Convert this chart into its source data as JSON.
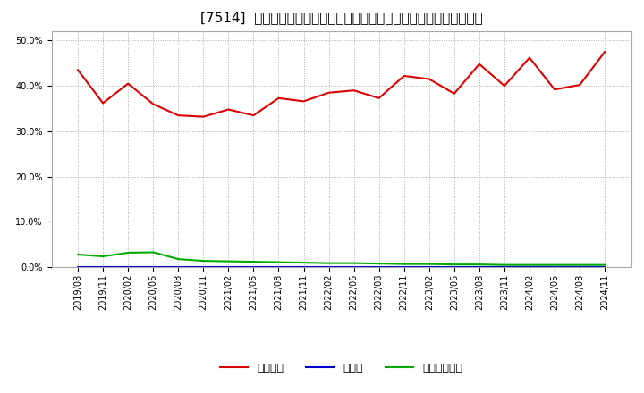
{
  "title": "[7514]  自己資本、のれん、繰延税金資産の総資産に対する比率の推移",
  "x_labels": [
    "2019/08",
    "2019/11",
    "2020/02",
    "2020/05",
    "2020/08",
    "2020/11",
    "2021/02",
    "2021/05",
    "2021/08",
    "2021/11",
    "2022/02",
    "2022/05",
    "2022/08",
    "2022/11",
    "2023/02",
    "2023/05",
    "2023/08",
    "2023/11",
    "2024/02",
    "2024/05",
    "2024/08",
    "2024/11"
  ],
  "jikoshihon": [
    0.435,
    0.362,
    0.405,
    0.36,
    0.335,
    0.332,
    0.348,
    0.335,
    0.373,
    0.366,
    0.385,
    0.39,
    0.373,
    0.422,
    0.415,
    0.383,
    0.448,
    0.4,
    0.462,
    0.392,
    0.402,
    0.475
  ],
  "noren": [
    0.0,
    0.0,
    0.0,
    0.0,
    0.0,
    0.0,
    0.0,
    0.0,
    0.0,
    0.0,
    0.0,
    0.0,
    0.0,
    0.0,
    0.0,
    0.0,
    0.0,
    0.0,
    0.0,
    0.0,
    0.0,
    0.0
  ],
  "kurinobe": [
    0.028,
    0.024,
    0.032,
    0.033,
    0.018,
    0.014,
    0.013,
    0.012,
    0.011,
    0.01,
    0.009,
    0.009,
    0.008,
    0.007,
    0.007,
    0.006,
    0.006,
    0.005,
    0.005,
    0.005,
    0.005,
    0.005
  ],
  "jikoshihon_color": "#dd0000",
  "noren_color": "#0000cc",
  "kurinobe_color": "#00aa00",
  "bg_color": "#ffffff",
  "plot_bg_color": "#ffffff",
  "grid_color": "#aaaaaa",
  "ylim": [
    0.0,
    0.52
  ],
  "yticks": [
    0.0,
    0.1,
    0.2,
    0.3,
    0.4,
    0.5
  ],
  "legend_labels": [
    "自己資本",
    "のれん",
    "繰延税金資産"
  ],
  "title_fontsize": 11,
  "tick_fontsize": 7,
  "legend_fontsize": 9
}
